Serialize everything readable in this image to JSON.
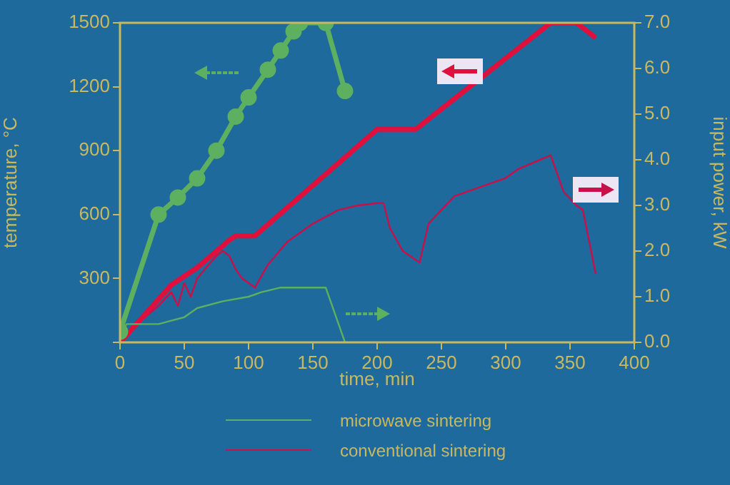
{
  "chart_data": {
    "type": "line",
    "xlabel": "time, min",
    "ylabel": "temperature, °C",
    "y2label": "input power, kW",
    "xlim": [
      0,
      400
    ],
    "xticks": [
      0,
      50,
      100,
      150,
      200,
      250,
      300,
      350,
      400
    ],
    "ylim": [
      0,
      1500
    ],
    "yticks": [
      {
        "value": 0,
        "label": null
      },
      300,
      600,
      900,
      1200,
      1500
    ],
    "y2lim": [
      0,
      7
    ],
    "y2ticks": [
      {
        "value": 0,
        "label": "0.0"
      },
      {
        "value": 1,
        "label": "1.0"
      },
      {
        "value": 2,
        "label": "2.0"
      },
      {
        "value": 3,
        "label": "3.0"
      },
      {
        "value": 4,
        "label": "4.0"
      },
      {
        "value": 5,
        "label": "5.0"
      },
      {
        "value": 6,
        "label": "6.0"
      },
      {
        "value": 7,
        "label": "7.0"
      }
    ],
    "grid": false,
    "legend": "bottom",
    "line_style": "solid",
    "series": [
      {
        "color": "#5cb060",
        "marker": "circle",
        "x": [
          0,
          30,
          45,
          60,
          75,
          90,
          100,
          115,
          125,
          135,
          140,
          160,
          175
        ],
        "values": [
          50,
          600,
          680,
          770,
          900,
          1060,
          1150,
          1280,
          1370,
          1460,
          1500,
          1500,
          1180
        ]
      },
      {
        "name": "microwave sintering",
        "color": "#5cb060",
        "marker": "none",
        "axis": "y2",
        "x": [
          0,
          5,
          30,
          50,
          60,
          80,
          100,
          110,
          125,
          160,
          175
        ],
        "values": [
          0.1,
          0.4,
          0.4,
          0.55,
          0.75,
          0.9,
          1.0,
          1.1,
          1.2,
          1.2,
          0
        ]
      },
      {
        "color": "#e0103c",
        "marker": "none",
        "x": [
          0,
          40,
          60,
          85,
          90,
          105,
          200,
          230,
          335,
          355,
          370
        ],
        "values": [
          0,
          270,
          350,
          480,
          500,
          500,
          1000,
          1000,
          1500,
          1500,
          1430
        ]
      },
      {
        "name": "conventional sintering",
        "color": "#c8104a",
        "marker": "none",
        "axis": "y2",
        "x": [
          0,
          30,
          40,
          45,
          50,
          55,
          60,
          75,
          80,
          85,
          90,
          95,
          100,
          105,
          115,
          130,
          150,
          170,
          185,
          200,
          205,
          210,
          220,
          233,
          240,
          250,
          260,
          280,
          300,
          310,
          335,
          340,
          345,
          355,
          360,
          370
        ],
        "values": [
          0.1,
          0.8,
          1.1,
          0.8,
          1.3,
          1.0,
          1.4,
          1.9,
          2.0,
          1.9,
          1.6,
          1.4,
          1.3,
          1.2,
          1.7,
          2.2,
          2.6,
          2.9,
          3.0,
          3.05,
          3.05,
          2.5,
          2.0,
          1.75,
          2.6,
          2.9,
          3.2,
          3.4,
          3.6,
          3.8,
          4.1,
          3.7,
          3.3,
          3.0,
          2.9,
          1.5
        ]
      }
    ]
  }
}
